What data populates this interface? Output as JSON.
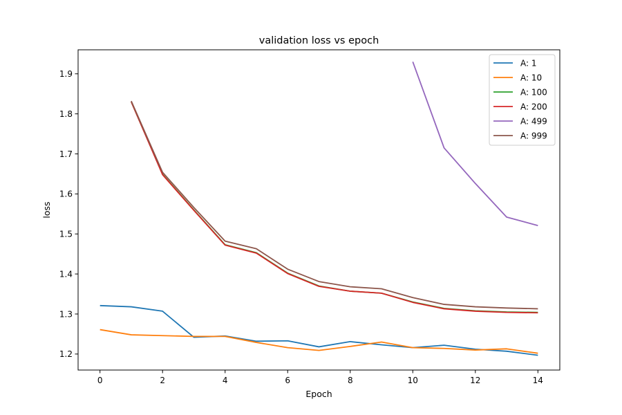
{
  "chart_data": {
    "type": "line",
    "title": "validation loss vs epoch",
    "xlabel": "Epoch",
    "ylabel": "loss",
    "xlim": [
      -0.7,
      14.7
    ],
    "ylim": [
      1.16,
      1.96
    ],
    "xticks": [
      0,
      2,
      4,
      6,
      8,
      10,
      12,
      14
    ],
    "yticks": [
      1.2,
      1.3,
      1.4,
      1.5,
      1.6,
      1.7,
      1.8,
      1.9
    ],
    "grid": false,
    "legend_position": "upper-right",
    "series": [
      {
        "name": "A: 1",
        "color": "#1f77b4",
        "x": [
          0,
          1,
          2,
          3,
          4,
          5,
          6,
          7,
          8,
          9,
          10,
          11,
          12,
          13,
          14
        ],
        "values": [
          1.321,
          1.318,
          1.307,
          1.242,
          1.245,
          1.232,
          1.233,
          1.218,
          1.231,
          1.223,
          1.216,
          1.222,
          1.212,
          1.207,
          1.197
        ]
      },
      {
        "name": "A: 10",
        "color": "#ff7f0e",
        "x": [
          0,
          1,
          2,
          3,
          4,
          5,
          6,
          7,
          8,
          9,
          10,
          11,
          12,
          13,
          14
        ],
        "values": [
          1.261,
          1.248,
          1.246,
          1.244,
          1.244,
          1.229,
          1.216,
          1.209,
          1.219,
          1.23,
          1.216,
          1.214,
          1.21,
          1.213,
          1.202
        ]
      },
      {
        "name": "A: 100",
        "color": "#2ca02c",
        "x": [
          1,
          2,
          3,
          4,
          5,
          6,
          7,
          8,
          9,
          10,
          11,
          12,
          13,
          14
        ],
        "values": [
          1.83,
          1.649,
          1.56,
          1.473,
          1.453,
          1.402,
          1.37,
          1.357,
          1.352,
          1.33,
          1.314,
          1.308,
          1.305,
          1.304
        ]
      },
      {
        "name": "A: 200",
        "color": "#d62728",
        "x": [
          1,
          2,
          3,
          4,
          5,
          6,
          7,
          8,
          9,
          10,
          11,
          12,
          13,
          14
        ],
        "values": [
          1.83,
          1.648,
          1.559,
          1.472,
          1.452,
          1.401,
          1.369,
          1.357,
          1.352,
          1.329,
          1.313,
          1.307,
          1.304,
          1.303
        ]
      },
      {
        "name": "A: 499",
        "color": "#9467bd",
        "x": [
          10,
          11,
          12,
          13,
          14
        ],
        "values": [
          1.93,
          1.715,
          1.626,
          1.542,
          1.521
        ]
      },
      {
        "name": "A: 999",
        "color": "#8c564b",
        "x": [
          1,
          2,
          3,
          4,
          5,
          6,
          7,
          8,
          9,
          10,
          11,
          12,
          13,
          14
        ],
        "values": [
          1.832,
          1.654,
          1.566,
          1.482,
          1.463,
          1.412,
          1.381,
          1.368,
          1.363,
          1.341,
          1.324,
          1.318,
          1.315,
          1.313
        ]
      }
    ]
  }
}
